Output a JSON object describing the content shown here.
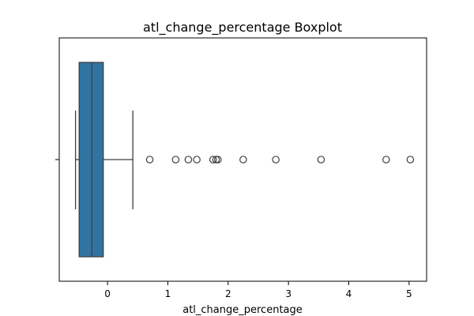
{
  "chart_data": {
    "type": "boxplot",
    "title": "atl_change_percentage Boxplot",
    "xlabel": "atl_change_percentage",
    "ylabel": "",
    "xlim": [
      -0.8,
      5.29
    ],
    "x_ticks": [
      0,
      1,
      2,
      3,
      4,
      5
    ],
    "x_tick_labels": [
      "0",
      "1",
      "2",
      "3",
      "4",
      "5"
    ],
    "grid": false,
    "orientation": "horizontal",
    "colors": {
      "box_fill": "#3274a1",
      "line": "#3f3f3f",
      "axes": "#000000"
    },
    "box": {
      "whisker_low": -0.53,
      "q1": -0.47,
      "median": -0.26,
      "q3": -0.07,
      "whisker_high": 0.42
    },
    "outliers": [
      0.7,
      1.13,
      1.34,
      1.48,
      1.75,
      1.8,
      1.83,
      2.25,
      2.79,
      3.54,
      4.62,
      5.02
    ]
  }
}
